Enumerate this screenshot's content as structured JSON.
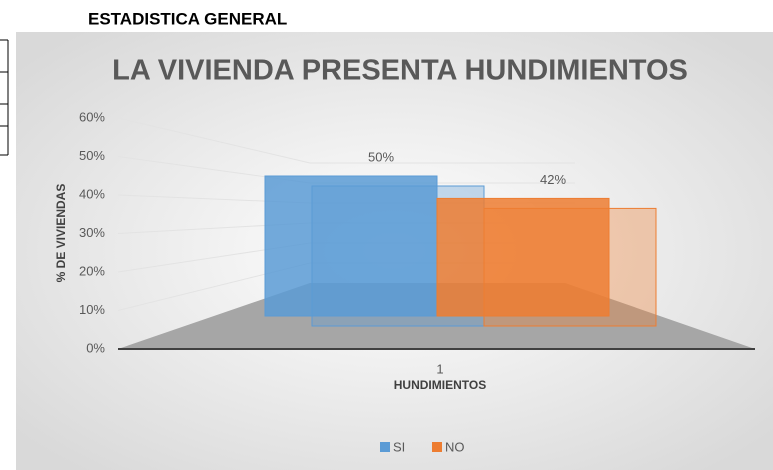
{
  "header": {
    "title": "ESTADISTICA GENERAL"
  },
  "chart_data": {
    "type": "bar3d",
    "title": "LA VIVIENDA PRESENTA HUNDIMIENTOS",
    "x_label": "HUNDIMIENTOS",
    "y_label": "% DE VIVIENDAS",
    "categories": [
      "1"
    ],
    "series": [
      {
        "name": "SI",
        "color": "#5b9bd5",
        "values": [
          50
        ],
        "value_labels": [
          "50%"
        ]
      },
      {
        "name": "NO",
        "color": "#ed7d31",
        "values": [
          42
        ],
        "value_labels": [
          "42%"
        ]
      }
    ],
    "ylim": [
      0,
      60
    ],
    "yticks": [
      {
        "value": 0,
        "label": "0%"
      },
      {
        "value": 10,
        "label": "10%"
      },
      {
        "value": 20,
        "label": "20%"
      },
      {
        "value": 30,
        "label": "30%"
      },
      {
        "value": 40,
        "label": "40%"
      },
      {
        "value": 50,
        "label": "50%"
      },
      {
        "value": 60,
        "label": "60%"
      }
    ],
    "grid": true,
    "legend": "bottom"
  }
}
